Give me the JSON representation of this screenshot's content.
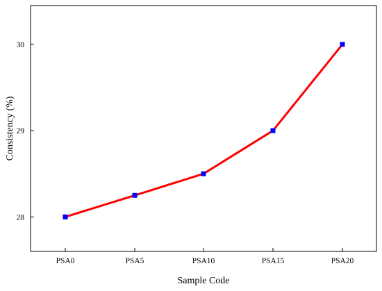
{
  "chart_data": {
    "type": "line",
    "categories": [
      "PSA0",
      "PSA5",
      "PSA10",
      "PSA15",
      "PSA20"
    ],
    "series": [
      {
        "values": [
          28.0,
          28.25,
          28.5,
          29.0,
          30.0
        ],
        "line_color": "#ff0000",
        "marker_color": "#0000ff",
        "marker": "square"
      }
    ],
    "xlabel": "Sample Code",
    "ylabel": "Consistency (%)",
    "ylim": [
      27.6,
      30.45
    ],
    "yticks": [
      28,
      29,
      30
    ],
    "grid": false,
    "legend": "none"
  }
}
